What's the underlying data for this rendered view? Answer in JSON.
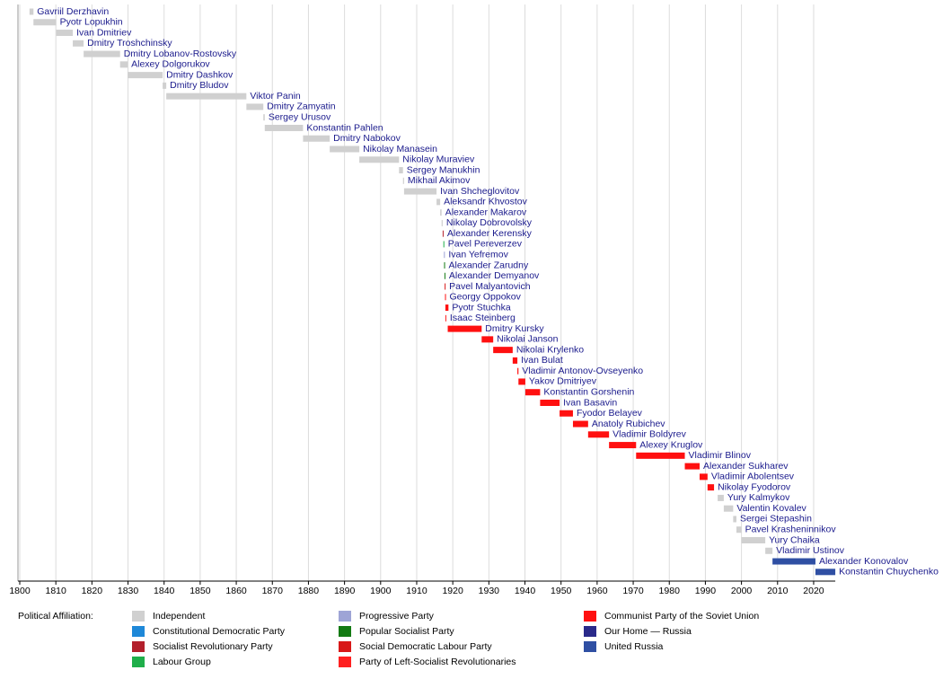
{
  "chart_data": {
    "type": "timeline",
    "xlim": [
      1800,
      2026
    ],
    "xticks": [
      1800,
      1810,
      1820,
      1830,
      1840,
      1850,
      1860,
      1870,
      1880,
      1890,
      1900,
      1910,
      1920,
      1930,
      1940,
      1950,
      1960,
      1970,
      1980,
      1990,
      2000,
      2010,
      2020
    ],
    "grid": true,
    "legend_title": "Political Affiliation:",
    "parties": [
      {
        "name": "Independent",
        "color": "#d0d0d0"
      },
      {
        "name": "Constitutional Democratic Party",
        "color": "#1e88d8"
      },
      {
        "name": "Socialist Revolutionary Party",
        "color": "#b3202c"
      },
      {
        "name": "Labour Group",
        "color": "#1fae4a"
      },
      {
        "name": "Progressive Party",
        "color": "#9ea4d6"
      },
      {
        "name": "Popular Socialist Party",
        "color": "#137a13"
      },
      {
        "name": "Social Democratic Labour Party",
        "color": "#d81818"
      },
      {
        "name": "Party of Left-Socialist Revolutionaries",
        "color": "#ff2020"
      },
      {
        "name": "Communist Party of the Soviet Union",
        "color": "#ff1010"
      },
      {
        "name": "Our Home — Russia",
        "color": "#2a2a8a"
      },
      {
        "name": "United Russia",
        "color": "#2f4fa3"
      }
    ],
    "rows": [
      {
        "name": "Gavriil Derzhavin",
        "start": 1802.7,
        "end": 1803.8,
        "party": "Independent"
      },
      {
        "name": "Pyotr Lopukhin",
        "start": 1803.8,
        "end": 1810.1,
        "party": "Independent"
      },
      {
        "name": "Ivan Dmitriev",
        "start": 1810.1,
        "end": 1814.7,
        "party": "Independent"
      },
      {
        "name": "Dmitry Troshchinsky",
        "start": 1814.7,
        "end": 1817.7,
        "party": "Independent"
      },
      {
        "name": "Dmitry Lobanov-Rostovsky",
        "start": 1817.7,
        "end": 1827.8,
        "party": "Independent"
      },
      {
        "name": "Alexey Dolgorukov",
        "start": 1827.8,
        "end": 1829.9,
        "party": "Independent"
      },
      {
        "name": "Dmitry Dashkov",
        "start": 1829.9,
        "end": 1839.6,
        "party": "Independent"
      },
      {
        "name": "Dmitry Bludov",
        "start": 1839.6,
        "end": 1840.6,
        "party": "Independent"
      },
      {
        "name": "Viktor Panin",
        "start": 1840.6,
        "end": 1862.8,
        "party": "Independent"
      },
      {
        "name": "Dmitry Zamyatin",
        "start": 1862.8,
        "end": 1867.5,
        "party": "Independent"
      },
      {
        "name": "Sergey Urusov",
        "start": 1867.5,
        "end": 1867.9,
        "party": "Independent"
      },
      {
        "name": "Konstantin Pahlen",
        "start": 1867.9,
        "end": 1878.5,
        "party": "Independent"
      },
      {
        "name": "Dmitry Nabokov",
        "start": 1878.5,
        "end": 1885.9,
        "party": "Independent"
      },
      {
        "name": "Nikolay Manasein",
        "start": 1885.9,
        "end": 1894.1,
        "party": "Independent"
      },
      {
        "name": "Nikolay Muraviev",
        "start": 1894.1,
        "end": 1905.1,
        "party": "Independent"
      },
      {
        "name": "Sergey Manukhin",
        "start": 1905.1,
        "end": 1906.2,
        "party": "Independent"
      },
      {
        "name": "Mikhail Akimov",
        "start": 1906.2,
        "end": 1906.5,
        "party": "Independent"
      },
      {
        "name": "Ivan Shcheglovitov",
        "start": 1906.5,
        "end": 1915.5,
        "party": "Independent"
      },
      {
        "name": "Aleksandr Khvostov",
        "start": 1915.5,
        "end": 1916.5,
        "party": "Independent"
      },
      {
        "name": "Alexander Makarov",
        "start": 1916.5,
        "end": 1916.9,
        "party": "Independent"
      },
      {
        "name": "Nikolay Dobrovolsky",
        "start": 1916.9,
        "end": 1917.2,
        "party": "Independent"
      },
      {
        "name": "Alexander Kerensky",
        "start": 1917.2,
        "end": 1917.4,
        "party": "Socialist Revolutionary Party"
      },
      {
        "name": "Pavel Pereverzev",
        "start": 1917.4,
        "end": 1917.55,
        "party": "Labour Group"
      },
      {
        "name": "Ivan Yefremov",
        "start": 1917.55,
        "end": 1917.6,
        "party": "Progressive Party"
      },
      {
        "name": "Alexander Zarudny",
        "start": 1917.6,
        "end": 1917.7,
        "party": "Popular Socialist Party"
      },
      {
        "name": "Alexander Demyanov",
        "start": 1917.7,
        "end": 1917.75,
        "party": "Popular Socialist Party"
      },
      {
        "name": "Pavel Malyantovich",
        "start": 1917.75,
        "end": 1917.85,
        "party": "Social Democratic Labour Party"
      },
      {
        "name": "Georgy Oppokov",
        "start": 1917.85,
        "end": 1917.95,
        "party": "Communist Party of the Soviet Union"
      },
      {
        "name": "Pyotr Stuchka",
        "start": 1917.95,
        "end": 1918.8,
        "party": "Communist Party of the Soviet Union"
      },
      {
        "name": "Isaac Steinberg",
        "start": 1917.95,
        "end": 1918.2,
        "party": "Party of Left-Socialist Revolutionaries"
      },
      {
        "name": "Dmitry Kursky",
        "start": 1918.6,
        "end": 1928.0,
        "party": "Communist Party of the Soviet Union"
      },
      {
        "name": "Nikolai Janson",
        "start": 1928.0,
        "end": 1931.2,
        "party": "Communist Party of the Soviet Union"
      },
      {
        "name": "Nikolai Krylenko",
        "start": 1931.2,
        "end": 1936.6,
        "party": "Communist Party of the Soviet Union"
      },
      {
        "name": "Ivan Bulat",
        "start": 1936.6,
        "end": 1937.9,
        "party": "Communist Party of the Soviet Union"
      },
      {
        "name": "Vladimir Antonov-Ovseyenko",
        "start": 1937.9,
        "end": 1938.2,
        "party": "Communist Party of the Soviet Union"
      },
      {
        "name": "Yakov Dmitriyev",
        "start": 1938.2,
        "end": 1940.1,
        "party": "Communist Party of the Soviet Union"
      },
      {
        "name": "Konstantin Gorshenin",
        "start": 1940.1,
        "end": 1944.2,
        "party": "Communist Party of the Soviet Union"
      },
      {
        "name": "Ivan Basavin",
        "start": 1944.2,
        "end": 1949.6,
        "party": "Communist Party of the Soviet Union"
      },
      {
        "name": "Fyodor Belayev",
        "start": 1949.6,
        "end": 1953.3,
        "party": "Communist Party of the Soviet Union"
      },
      {
        "name": "Anatoly Rubichev",
        "start": 1953.3,
        "end": 1957.5,
        "party": "Communist Party of the Soviet Union"
      },
      {
        "name": "Vladimir Boldyrev",
        "start": 1957.5,
        "end": 1963.3,
        "party": "Communist Party of the Soviet Union"
      },
      {
        "name": "Alexey Kruglov",
        "start": 1963.3,
        "end": 1970.8,
        "party": "Communist Party of the Soviet Union"
      },
      {
        "name": "Vladimir Blinov",
        "start": 1970.8,
        "end": 1984.3,
        "party": "Communist Party of the Soviet Union"
      },
      {
        "name": "Alexander Sukharev",
        "start": 1984.3,
        "end": 1988.4,
        "party": "Communist Party of the Soviet Union"
      },
      {
        "name": "Vladimir Abolentsev",
        "start": 1988.4,
        "end": 1990.6,
        "party": "Communist Party of the Soviet Union"
      },
      {
        "name": "Nikolay Fyodorov",
        "start": 1990.6,
        "end": 1992.4,
        "party": "Communist Party of the Soviet Union"
      },
      {
        "name": "Yury Kalmykov",
        "start": 1993.4,
        "end": 1995.1,
        "party": "Independent"
      },
      {
        "name": "Valentin Kovalev",
        "start": 1995.1,
        "end": 1997.7,
        "party": "Independent"
      },
      {
        "name": "Sergei Stepashin",
        "start": 1997.7,
        "end": 1998.6,
        "party": "Independent"
      },
      {
        "name": "Pavel Krasheninnikov",
        "start": 1998.6,
        "end": 2000.0,
        "party": "Independent"
      },
      {
        "name": "Yury Chaika",
        "start": 2000.0,
        "end": 2006.6,
        "party": "Independent"
      },
      {
        "name": "Vladimir Ustinov",
        "start": 2006.6,
        "end": 2008.6,
        "party": "Independent"
      },
      {
        "name": "Alexander Konovalov",
        "start": 2008.6,
        "end": 2020.5,
        "party": "United Russia"
      },
      {
        "name": "Konstantin Chuychenko",
        "start": 2020.5,
        "end": 2026,
        "party": "United Russia"
      }
    ]
  }
}
